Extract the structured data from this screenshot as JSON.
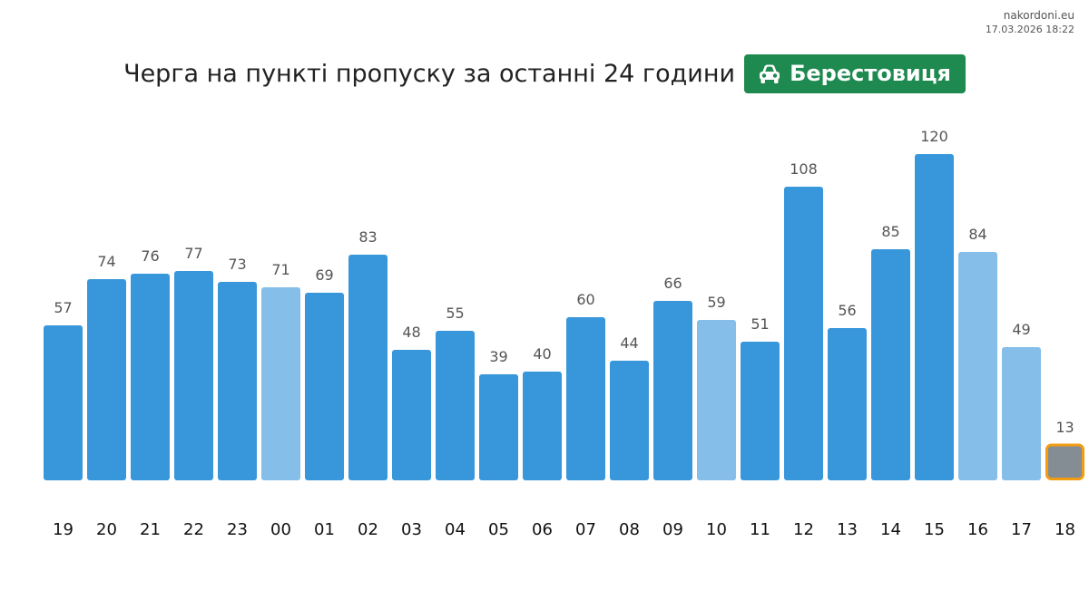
{
  "site": {
    "name": "nakordoni.eu",
    "datetime": "17.03.2026 18:22"
  },
  "header": {
    "title": "Черга на пункті пропуску за останні 24 години",
    "checkpoint": "Берестовиця",
    "checkpoint_icon": "car-icon",
    "checkpoint_color": "#1e8a50"
  },
  "chart_data": {
    "type": "bar",
    "title": "Черга на пункті пропуску за останні 24 години",
    "xlabel": "",
    "ylabel": "",
    "ylim": [
      0,
      120
    ],
    "grid": false,
    "legend": "none",
    "categories": [
      "19",
      "20",
      "21",
      "22",
      "23",
      "00",
      "01",
      "02",
      "03",
      "04",
      "05",
      "06",
      "07",
      "08",
      "09",
      "10",
      "11",
      "12",
      "13",
      "14",
      "15",
      "16",
      "17",
      "18"
    ],
    "values": [
      57,
      74,
      76,
      77,
      73,
      71,
      69,
      83,
      48,
      55,
      39,
      40,
      60,
      44,
      66,
      59,
      51,
      108,
      56,
      85,
      120,
      84,
      49,
      13
    ],
    "bar_styles": [
      "normal",
      "normal",
      "normal",
      "normal",
      "normal",
      "light",
      "normal",
      "normal",
      "normal",
      "normal",
      "normal",
      "normal",
      "normal",
      "normal",
      "normal",
      "light",
      "normal",
      "normal",
      "normal",
      "normal",
      "normal",
      "light",
      "light",
      "current"
    ],
    "colors": {
      "normal": "#3897db",
      "light": "#85bee8",
      "current": "#848d94",
      "current_border": "#f39c12",
      "value_label": "#555555",
      "tick_label": "#111111"
    }
  }
}
